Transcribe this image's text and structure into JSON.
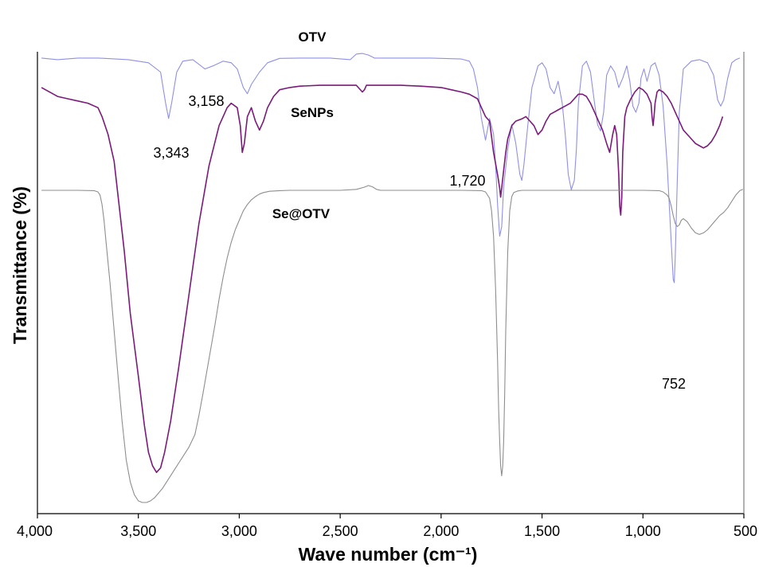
{
  "chart_data": {
    "type": "line",
    "title": "",
    "xlabel": "Wave number (cm⁻¹)",
    "ylabel": "Transmittance (%)",
    "xlim": [
      4000,
      500
    ],
    "x_reversed": true,
    "y_ticks_shown": false,
    "grid": false,
    "legend": "labels placed next to curves",
    "xticks": [
      "4,000",
      "3,500",
      "3,000",
      "2,500",
      "2,000",
      "1,500",
      "1,000",
      "500"
    ],
    "xtick_values": [
      4000,
      3500,
      3000,
      2500,
      2000,
      1500,
      1000,
      500
    ],
    "series": [
      {
        "name": "OTV",
        "color": "#8f90e6",
        "x": [
          3980,
          3900,
          3800,
          3700,
          3550,
          3450,
          3390,
          3365,
          3350,
          3335,
          3310,
          3280,
          3230,
          3200,
          3170,
          3130,
          3080,
          3040,
          3010,
          2980,
          2960,
          2940,
          2900,
          2860,
          2800,
          2700,
          2550,
          2450,
          2420,
          2390,
          2360,
          2330,
          2300,
          2200,
          2050,
          1900,
          1860,
          1840,
          1820,
          1800,
          1780,
          1760,
          1740,
          1730,
          1720,
          1710,
          1700,
          1690,
          1670,
          1650,
          1630,
          1610,
          1600,
          1590,
          1570,
          1550,
          1520,
          1500,
          1480,
          1460,
          1440,
          1420,
          1400,
          1385,
          1370,
          1355,
          1340,
          1330,
          1320,
          1300,
          1280,
          1260,
          1240,
          1225,
          1210,
          1195,
          1180,
          1160,
          1140,
          1120,
          1100,
          1080,
          1065,
          1050,
          1035,
          1020,
          1010,
          995,
          980,
          960,
          940,
          920,
          900,
          880,
          860,
          850,
          845,
          840,
          830,
          820,
          800,
          760,
          720,
          680,
          650,
          630,
          615,
          600,
          580,
          560,
          540,
          520
        ],
        "y": [
          99.5,
          99.0,
          99.5,
          99.5,
          99.0,
          98.0,
          95.0,
          85.0,
          80.0,
          85.0,
          95.0,
          98.5,
          99.0,
          97.5,
          96.0,
          97.0,
          98.5,
          98.0,
          96.0,
          90.0,
          88.0,
          91.0,
          95.0,
          98.0,
          99.4,
          99.5,
          99.5,
          99.0,
          100.8,
          101.0,
          100.5,
          99.5,
          99.5,
          99.5,
          99.5,
          99.2,
          98.5,
          96.0,
          90.0,
          80.0,
          73.0,
          80.0,
          75.0,
          65.0,
          52.0,
          42.0,
          45.0,
          58.0,
          70.0,
          78.0,
          72.0,
          62.0,
          60.0,
          65.0,
          78.0,
          90.0,
          97.0,
          98.0,
          96.0,
          90.0,
          88.0,
          92.0,
          85.0,
          75.0,
          62.0,
          57.0,
          60.0,
          70.0,
          85.0,
          97.0,
          98.5,
          95.0,
          85.0,
          78.0,
          76.0,
          82.0,
          94.0,
          97.0,
          95.0,
          90.0,
          93.0,
          97.0,
          92.0,
          84.0,
          82.0,
          85.0,
          93.0,
          96.0,
          92.0,
          97.0,
          98.0,
          94.0,
          84.0,
          65.0,
          40.0,
          28.0,
          27.0,
          35.0,
          60.0,
          82.0,
          96.0,
          98.5,
          99.0,
          98.0,
          94.0,
          86.0,
          84.0,
          86.0,
          93.0,
          98.0,
          99.0,
          99.5
        ]
      },
      {
        "name": "SeNPs",
        "color": "#7b1a7b",
        "x": [
          3980,
          3900,
          3850,
          3800,
          3750,
          3700,
          3680,
          3650,
          3620,
          3600,
          3570,
          3540,
          3500,
          3470,
          3450,
          3430,
          3410,
          3390,
          3370,
          3340,
          3300,
          3250,
          3200,
          3150,
          3100,
          3060,
          3040,
          3010,
          2995,
          2985,
          2975,
          2960,
          2940,
          2920,
          2900,
          2880,
          2860,
          2830,
          2800,
          2750,
          2700,
          2600,
          2500,
          2420,
          2390,
          2380,
          2370,
          2340,
          2300,
          2200,
          2100,
          2000,
          1950,
          1900,
          1860,
          1820,
          1800,
          1780,
          1760,
          1740,
          1720,
          1710,
          1705,
          1700,
          1690,
          1680,
          1670,
          1650,
          1630,
          1600,
          1580,
          1560,
          1540,
          1520,
          1500,
          1480,
          1460,
          1440,
          1420,
          1400,
          1380,
          1360,
          1340,
          1320,
          1300,
          1280,
          1260,
          1240,
          1220,
          1200,
          1180,
          1165,
          1150,
          1140,
          1130,
          1120,
          1115,
          1110,
          1105,
          1100,
          1090,
          1080,
          1060,
          1040,
          1020,
          1000,
          980,
          960,
          955,
          950,
          945,
          940,
          930,
          920,
          900,
          880,
          860,
          840,
          820,
          800,
          780,
          760,
          740,
          720,
          700,
          680,
          660,
          640,
          620,
          605
        ],
        "y": [
          94.5,
          92.5,
          92.0,
          91.5,
          91.0,
          90.0,
          88.0,
          84.0,
          78.0,
          70.0,
          58.0,
          44.0,
          30.0,
          19.0,
          13.0,
          10.0,
          8.5,
          9.5,
          13.0,
          20.0,
          32.0,
          48.0,
          64.0,
          77.0,
          86.0,
          90.0,
          91.0,
          90.0,
          86.0,
          80.0,
          82.0,
          88.0,
          90.0,
          87.0,
          85.0,
          87.0,
          90.0,
          92.5,
          94.0,
          94.5,
          94.8,
          95.0,
          95.0,
          95.0,
          93.5,
          94.0,
          95.0,
          95.0,
          95.0,
          95.0,
          94.8,
          94.5,
          94.0,
          93.5,
          93.0,
          92.0,
          90.0,
          88.0,
          87.0,
          80.0,
          75.0,
          72.0,
          70.0,
          72.0,
          76.0,
          80.0,
          83.0,
          86.0,
          87.0,
          87.5,
          88.0,
          87.0,
          86.0,
          84.0,
          85.0,
          87.0,
          88.5,
          89.0,
          89.5,
          90.0,
          90.5,
          91.0,
          92.0,
          93.0,
          93.0,
          92.5,
          91.0,
          89.0,
          87.0,
          85.0,
          82.0,
          80.0,
          84.0,
          86.0,
          84.0,
          75.0,
          68.0,
          66.0,
          70.0,
          80.0,
          88.0,
          90.0,
          92.0,
          93.5,
          94.5,
          94.0,
          93.0,
          91.0,
          88.0,
          86.0,
          88.0,
          91.0,
          93.5,
          94.0,
          93.5,
          92.5,
          91.0,
          89.0,
          87.0,
          85.0,
          84.0,
          83.0,
          82.0,
          81.5,
          81.0,
          81.5,
          82.5,
          84.0,
          86.0,
          88.0
        ]
      },
      {
        "name": "Se@OTV",
        "color": "#8e8e8e",
        "x": [
          3980,
          3900,
          3800,
          3720,
          3700,
          3690,
          3680,
          3670,
          3660,
          3640,
          3620,
          3600,
          3580,
          3560,
          3540,
          3520,
          3500,
          3480,
          3460,
          3440,
          3420,
          3400,
          3380,
          3350,
          3320,
          3300,
          3280,
          3250,
          3220,
          3200,
          3180,
          3150,
          3120,
          3100,
          3080,
          3060,
          3040,
          3020,
          3000,
          2980,
          2960,
          2940,
          2920,
          2900,
          2880,
          2850,
          2800,
          2750,
          2700,
          2600,
          2500,
          2420,
          2380,
          2360,
          2340,
          2320,
          2300,
          2200,
          2100,
          2000,
          1900,
          1800,
          1780,
          1760,
          1750,
          1740,
          1730,
          1720,
          1715,
          1710,
          1705,
          1700,
          1695,
          1690,
          1685,
          1680,
          1670,
          1660,
          1650,
          1640,
          1620,
          1600,
          1550,
          1500,
          1400,
          1300,
          1200,
          1100,
          1000,
          920,
          900,
          880,
          870,
          860,
          850,
          840,
          830,
          820,
          810,
          800,
          780,
          760,
          740,
          720,
          700,
          680,
          660,
          640,
          620,
          600,
          580,
          560,
          540,
          520,
          505
        ],
        "y": [
          99.5,
          99.5,
          99.5,
          99.4,
          99.0,
          98.0,
          95.0,
          90.0,
          83.0,
          70.0,
          55.0,
          40.0,
          26.0,
          14.0,
          7.0,
          3.0,
          1.0,
          0.5,
          0.5,
          1.0,
          2.0,
          3.5,
          5.0,
          8.0,
          11.0,
          13.0,
          15.0,
          18.0,
          22.0,
          28.0,
          35.0,
          46.0,
          57.0,
          65.0,
          72.0,
          78.0,
          83.0,
          87.0,
          90.0,
          93.0,
          95.0,
          96.5,
          97.5,
          98.3,
          98.8,
          99.2,
          99.4,
          99.5,
          99.5,
          99.5,
          99.5,
          99.8,
          100.5,
          101.0,
          100.6,
          99.8,
          99.5,
          99.5,
          99.5,
          99.5,
          99.5,
          99.4,
          99.0,
          97.0,
          93.0,
          85.0,
          68.0,
          45.0,
          30.0,
          20.0,
          12.0,
          9.0,
          12.0,
          20.0,
          35.0,
          55.0,
          80.0,
          93.0,
          97.5,
          98.8,
          99.3,
          99.5,
          99.5,
          99.5,
          99.5,
          99.5,
          99.5,
          99.5,
          99.5,
          99.4,
          99.0,
          98.0,
          97.0,
          94.5,
          91.5,
          89.0,
          88.0,
          88.5,
          90.0,
          90.5,
          89.5,
          87.5,
          86.0,
          85.5,
          86.0,
          87.0,
          88.5,
          90.0,
          91.5,
          92.5,
          94.0,
          96.0,
          98.0,
          99.4,
          99.8
        ]
      }
    ],
    "series_labels": [
      "OTV",
      "SeNPs",
      "Se@OTV"
    ],
    "annotations": [
      "3,343",
      "3,158",
      "1,720",
      "752"
    ]
  }
}
